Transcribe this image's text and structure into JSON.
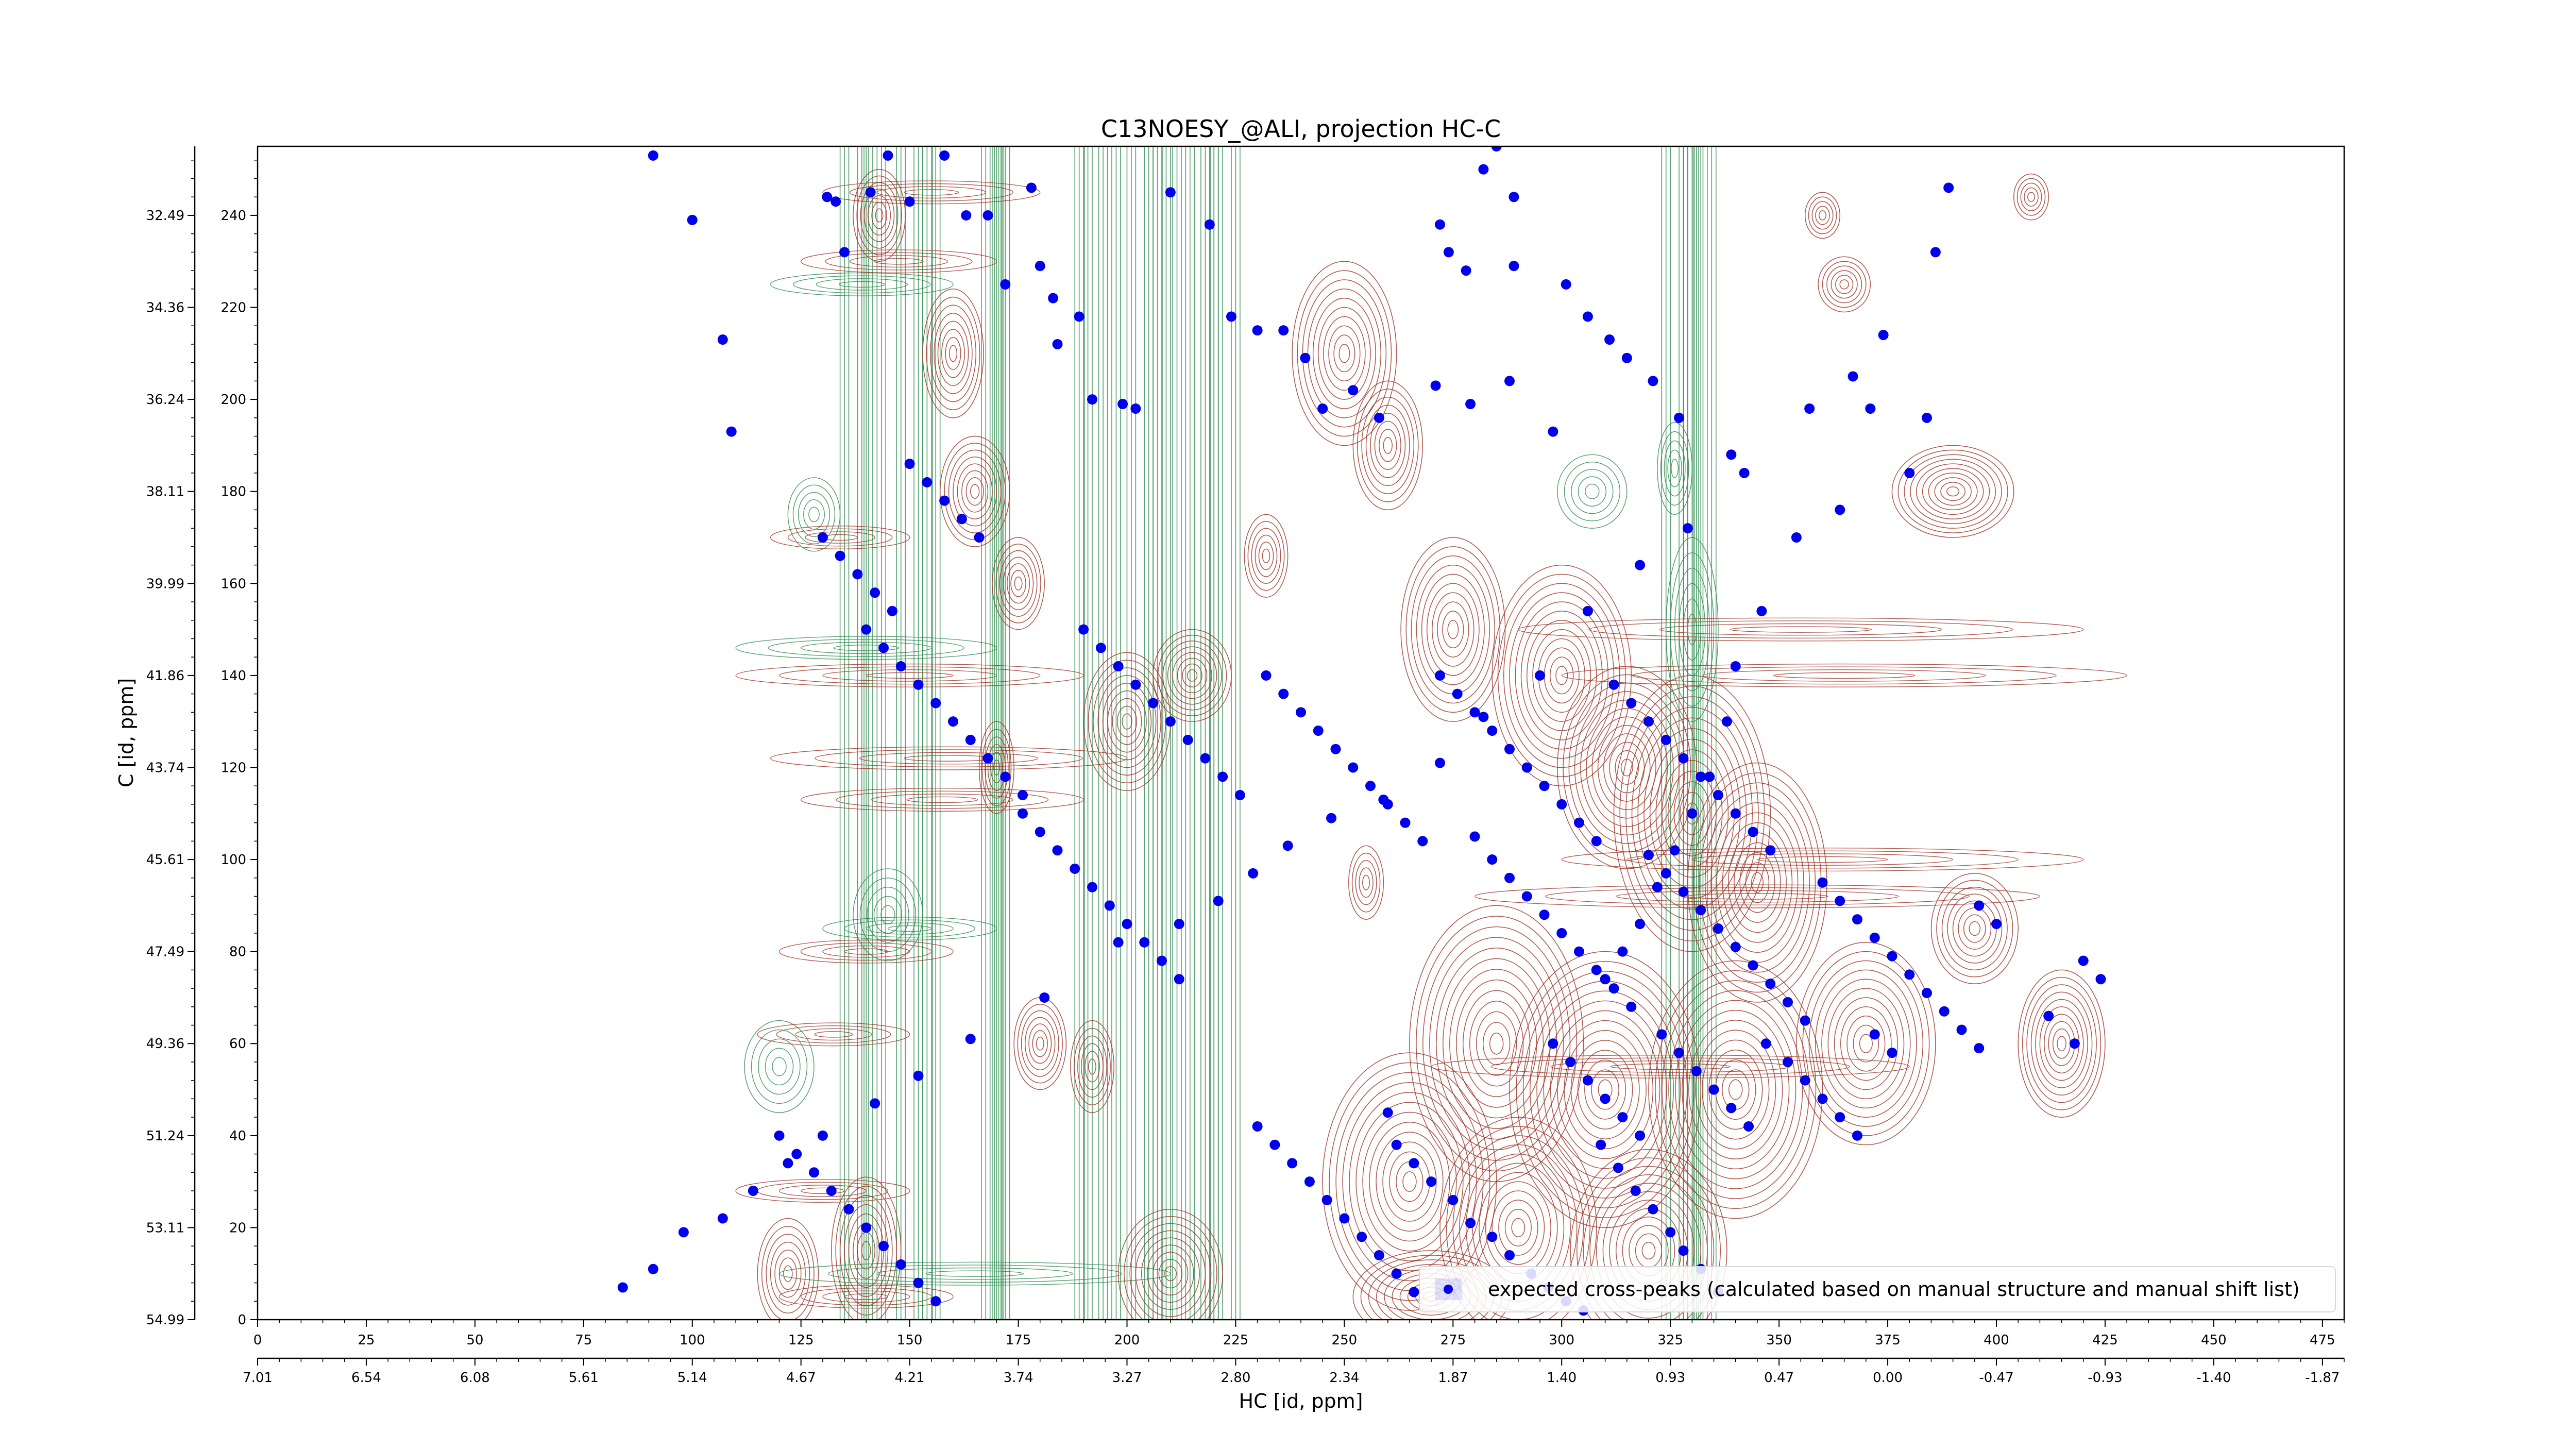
{
  "chart_data": {
    "type": "scatter",
    "title": "C13NOESY_@ALI, projection HC-C",
    "xlabel": "HC [id, ppm]",
    "ylabel": "C [id, ppm]",
    "xlim": [
      0,
      480
    ],
    "ylim": [
      0,
      255
    ],
    "x_ticks_index": [
      "0",
      "25",
      "50",
      "75",
      "100",
      "125",
      "150",
      "175",
      "200",
      "225",
      "250",
      "275",
      "300",
      "325",
      "350",
      "375",
      "400",
      "425",
      "450",
      "475"
    ],
    "x_ticks_ppm": [
      "7.01",
      "6.54",
      "6.08",
      "5.61",
      "5.14",
      "4.67",
      "4.21",
      "3.74",
      "3.27",
      "2.80",
      "2.34",
      "1.87",
      "1.40",
      "0.93",
      "0.47",
      "0.00",
      "-0.47",
      "-0.93",
      "-1.40",
      "-1.87"
    ],
    "y_ticks_index": [
      "0",
      "20",
      "40",
      "60",
      "80",
      "100",
      "120",
      "140",
      "160",
      "180",
      "200",
      "220",
      "240"
    ],
    "y_ticks_ppm": [
      "54.99",
      "53.11",
      "51.24",
      "49.36",
      "47.49",
      "45.61",
      "43.74",
      "41.86",
      "39.99",
      "38.11",
      "36.24",
      "34.36",
      "32.49"
    ],
    "legend": {
      "label": "expected cross-peaks (calculated based on manual structure and manual shift list)",
      "position": "lower right",
      "marker_color": "#0000ee"
    },
    "contour_colors": {
      "positive": "#a0382a",
      "negative": "#2e8b4f"
    },
    "series": [
      {
        "name": "expected cross-peaks (calculated based on manual structure and manual shift list)",
        "points": [
          [
            91,
            253
          ],
          [
            100,
            239
          ],
          [
            107,
            213
          ],
          [
            109,
            193
          ],
          [
            131,
            244
          ],
          [
            135,
            232
          ],
          [
            133,
            243
          ],
          [
            141,
            245
          ],
          [
            150,
            243
          ],
          [
            158,
            253
          ],
          [
            145,
            253
          ],
          [
            163,
            240
          ],
          [
            168,
            240
          ],
          [
            172,
            225
          ],
          [
            178,
            246
          ],
          [
            180,
            229
          ],
          [
            183,
            222
          ],
          [
            184,
            212
          ],
          [
            189,
            218
          ],
          [
            192,
            200
          ],
          [
            199,
            199
          ],
          [
            202,
            198
          ],
          [
            210,
            245
          ],
          [
            219,
            238
          ],
          [
            224,
            218
          ],
          [
            230,
            215
          ],
          [
            236,
            215
          ],
          [
            241,
            209
          ],
          [
            245,
            198
          ],
          [
            252,
            202
          ],
          [
            258,
            196
          ],
          [
            271,
            203
          ],
          [
            279,
            199
          ],
          [
            288,
            204
          ],
          [
            298,
            193
          ],
          [
            289,
            244
          ],
          [
            282,
            250
          ],
          [
            285,
            255
          ],
          [
            272,
            238
          ],
          [
            274,
            232
          ],
          [
            278,
            228
          ],
          [
            289,
            229
          ],
          [
            301,
            225
          ],
          [
            306,
            218
          ],
          [
            311,
            213
          ],
          [
            315,
            209
          ],
          [
            321,
            204
          ],
          [
            327,
            196
          ],
          [
            339,
            188
          ],
          [
            357,
            198
          ],
          [
            367,
            205
          ],
          [
            389,
            246
          ],
          [
            386,
            232
          ],
          [
            374,
            214
          ],
          [
            371,
            198
          ],
          [
            342,
            184
          ],
          [
            329,
            172
          ],
          [
            318,
            164
          ],
          [
            306,
            154
          ],
          [
            295,
            140
          ],
          [
            282,
            131
          ],
          [
            272,
            121
          ],
          [
            259,
            113
          ],
          [
            247,
            109
          ],
          [
            237,
            103
          ],
          [
            229,
            97
          ],
          [
            221,
            91
          ],
          [
            212,
            86
          ],
          [
            198,
            82
          ],
          [
            181,
            70
          ],
          [
            164,
            61
          ],
          [
            152,
            53
          ],
          [
            142,
            47
          ],
          [
            130,
            40
          ],
          [
            122,
            34
          ],
          [
            114,
            28
          ],
          [
            107,
            22
          ],
          [
            98,
            19
          ],
          [
            91,
            11
          ],
          [
            84,
            7
          ],
          [
            260,
            45
          ],
          [
            262,
            38
          ],
          [
            266,
            34
          ],
          [
            270,
            30
          ],
          [
            275,
            26
          ],
          [
            279,
            21
          ],
          [
            284,
            18
          ],
          [
            288,
            14
          ],
          [
            293,
            10
          ],
          [
            297,
            7
          ],
          [
            301,
            4
          ],
          [
            305,
            2
          ],
          [
            309,
            38
          ],
          [
            313,
            33
          ],
          [
            317,
            28
          ],
          [
            321,
            24
          ],
          [
            325,
            19
          ],
          [
            328,
            15
          ],
          [
            332,
            11
          ],
          [
            336,
            6
          ],
          [
            298,
            60
          ],
          [
            302,
            56
          ],
          [
            306,
            52
          ],
          [
            310,
            48
          ],
          [
            314,
            44
          ],
          [
            318,
            40
          ],
          [
            323,
            62
          ],
          [
            327,
            58
          ],
          [
            331,
            54
          ],
          [
            335,
            50
          ],
          [
            339,
            46
          ],
          [
            343,
            42
          ],
          [
            347,
            60
          ],
          [
            352,
            56
          ],
          [
            356,
            52
          ],
          [
            360,
            48
          ],
          [
            364,
            44
          ],
          [
            368,
            40
          ],
          [
            372,
            62
          ],
          [
            376,
            58
          ],
          [
            280,
            105
          ],
          [
            284,
            100
          ],
          [
            288,
            96
          ],
          [
            292,
            92
          ],
          [
            296,
            88
          ],
          [
            300,
            84
          ],
          [
            304,
            80
          ],
          [
            308,
            76
          ],
          [
            312,
            72
          ],
          [
            316,
            68
          ],
          [
            320,
            101
          ],
          [
            324,
            97
          ],
          [
            328,
            93
          ],
          [
            332,
            89
          ],
          [
            336,
            85
          ],
          [
            340,
            81
          ],
          [
            344,
            77
          ],
          [
            348,
            73
          ],
          [
            352,
            69
          ],
          [
            356,
            65
          ],
          [
            360,
            95
          ],
          [
            364,
            91
          ],
          [
            368,
            87
          ],
          [
            372,
            83
          ],
          [
            376,
            79
          ],
          [
            380,
            75
          ],
          [
            384,
            71
          ],
          [
            388,
            67
          ],
          [
            392,
            63
          ],
          [
            396,
            59
          ],
          [
            232,
            140
          ],
          [
            236,
            136
          ],
          [
            240,
            132
          ],
          [
            244,
            128
          ],
          [
            248,
            124
          ],
          [
            252,
            120
          ],
          [
            256,
            116
          ],
          [
            260,
            112
          ],
          [
            264,
            108
          ],
          [
            268,
            104
          ],
          [
            272,
            140
          ],
          [
            276,
            136
          ],
          [
            280,
            132
          ],
          [
            284,
            128
          ],
          [
            288,
            124
          ],
          [
            292,
            120
          ],
          [
            296,
            116
          ],
          [
            300,
            112
          ],
          [
            304,
            108
          ],
          [
            308,
            104
          ],
          [
            312,
            138
          ],
          [
            316,
            134
          ],
          [
            320,
            130
          ],
          [
            324,
            126
          ],
          [
            328,
            122
          ],
          [
            332,
            118
          ],
          [
            336,
            114
          ],
          [
            340,
            110
          ],
          [
            344,
            106
          ],
          [
            348,
            102
          ],
          [
            190,
            150
          ],
          [
            194,
            146
          ],
          [
            198,
            142
          ],
          [
            202,
            138
          ],
          [
            206,
            134
          ],
          [
            210,
            130
          ],
          [
            214,
            126
          ],
          [
            218,
            122
          ],
          [
            222,
            118
          ],
          [
            226,
            114
          ],
          [
            176,
            110
          ],
          [
            180,
            106
          ],
          [
            184,
            102
          ],
          [
            188,
            98
          ],
          [
            192,
            94
          ],
          [
            196,
            90
          ],
          [
            200,
            86
          ],
          [
            204,
            82
          ],
          [
            208,
            78
          ],
          [
            212,
            74
          ],
          [
            140,
            150
          ],
          [
            144,
            146
          ],
          [
            148,
            142
          ],
          [
            152,
            138
          ],
          [
            156,
            134
          ],
          [
            160,
            130
          ],
          [
            164,
            126
          ],
          [
            168,
            122
          ],
          [
            172,
            118
          ],
          [
            176,
            114
          ],
          [
            130,
            170
          ],
          [
            134,
            166
          ],
          [
            138,
            162
          ],
          [
            142,
            158
          ],
          [
            146,
            154
          ],
          [
            150,
            186
          ],
          [
            154,
            182
          ],
          [
            158,
            178
          ],
          [
            162,
            174
          ],
          [
            166,
            170
          ],
          [
            120,
            40
          ],
          [
            124,
            36
          ],
          [
            128,
            32
          ],
          [
            132,
            28
          ],
          [
            136,
            24
          ],
          [
            140,
            20
          ],
          [
            144,
            16
          ],
          [
            148,
            12
          ],
          [
            152,
            8
          ],
          [
            156,
            4
          ],
          [
            230,
            42
          ],
          [
            234,
            38
          ],
          [
            238,
            34
          ],
          [
            242,
            30
          ],
          [
            246,
            26
          ],
          [
            250,
            22
          ],
          [
            254,
            18
          ],
          [
            258,
            14
          ],
          [
            262,
            10
          ],
          [
            266,
            6
          ],
          [
            420,
            78
          ],
          [
            424,
            74
          ],
          [
            418,
            60
          ],
          [
            412,
            66
          ],
          [
            400,
            86
          ],
          [
            396,
            90
          ],
          [
            384,
            196
          ],
          [
            380,
            184
          ],
          [
            364,
            176
          ],
          [
            354,
            170
          ],
          [
            346,
            154
          ],
          [
            340,
            142
          ],
          [
            338,
            130
          ],
          [
            334,
            118
          ],
          [
            330,
            110
          ],
          [
            326,
            102
          ],
          [
            322,
            94
          ],
          [
            318,
            86
          ],
          [
            314,
            80
          ],
          [
            310,
            74
          ]
        ]
      }
    ]
  }
}
